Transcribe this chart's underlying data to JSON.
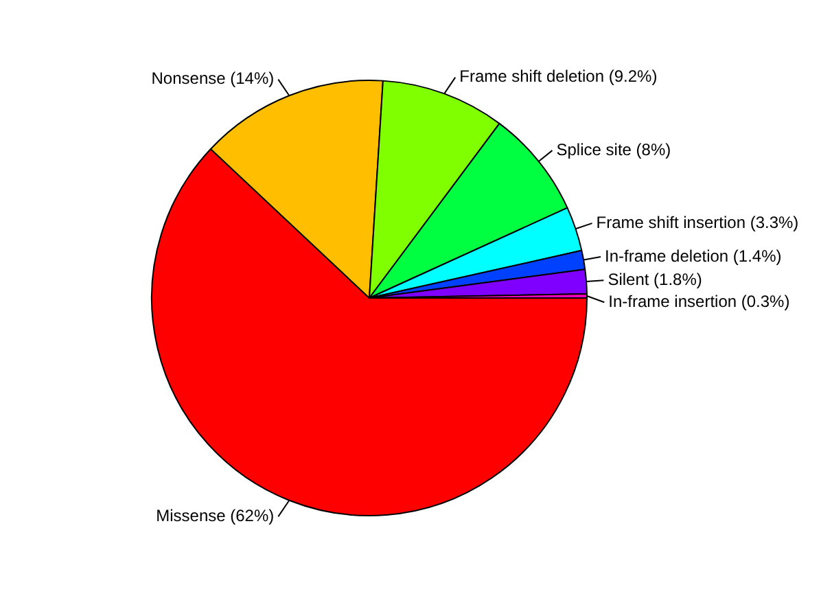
{
  "chart_data": {
    "type": "pie",
    "categories": [
      "Missense (62%)",
      "Nonsense (14%)",
      "Frame shift deletion (9.2%)",
      "Splice site (8%)",
      "Frame shift insertion (3.3%)",
      "In-frame deletion (1.4%)",
      "Silent (1.8%)",
      "In-frame insertion (0.3%)"
    ],
    "values": [
      62,
      14,
      9.2,
      8,
      3.3,
      1.4,
      1.8,
      0.3
    ],
    "colors": [
      "#ff0000",
      "#ffbf00",
      "#80ff00",
      "#00ff40",
      "#00ffff",
      "#0040ff",
      "#8000ff",
      "#ff00bf"
    ],
    "legend": false
  }
}
